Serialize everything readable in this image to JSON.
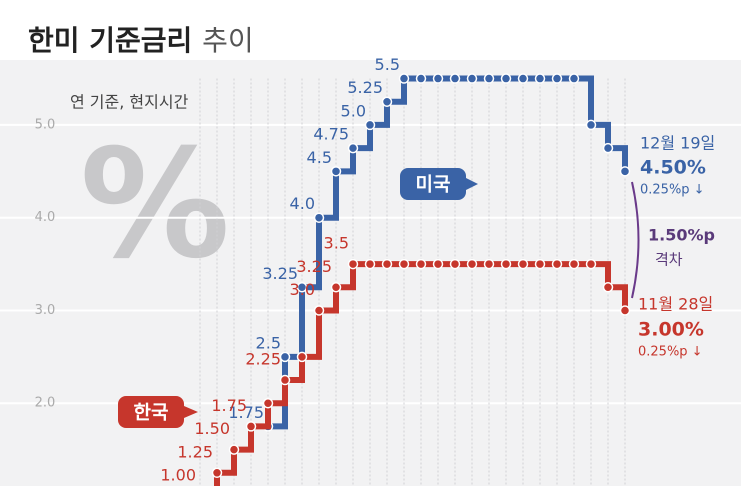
{
  "chart_data": {
    "type": "step",
    "title": [
      "한미 기준금리",
      "추이"
    ],
    "subtitle": "연 기준, 현지시간",
    "decoration": "%",
    "categories": [
      null,
      null,
      null,
      null,
      null,
      null,
      null,
      null,
      null,
      null,
      null,
      null,
      null,
      null,
      null,
      null,
      null,
      null,
      null,
      null,
      null,
      null,
      null,
      null,
      null,
      null
    ],
    "series": [
      {
        "name": "미국",
        "color": "#3a63a6",
        "values": [
          null,
          null,
          null,
          null,
          1.75,
          2.5,
          3.25,
          4.0,
          4.5,
          4.75,
          5.0,
          5.25,
          5.5,
          5.5,
          5.5,
          5.5,
          5.5,
          5.5,
          5.5,
          5.5,
          5.5,
          5.5,
          5.5,
          5.0,
          4.75,
          4.5
        ],
        "value_labels": [
          null,
          null,
          null,
          null,
          "1.75",
          "2.5",
          "3.25",
          "4.0",
          "4.5",
          "4.75",
          "5.0",
          "5.25",
          "5.5",
          null,
          null,
          null,
          null,
          null,
          null,
          null,
          null,
          null,
          null,
          null,
          null,
          null
        ]
      },
      {
        "name": "한국",
        "color": "#c6362c",
        "values": [
          1.0,
          1.25,
          1.5,
          1.75,
          2.0,
          2.25,
          2.5,
          3.0,
          3.25,
          3.5,
          3.5,
          3.5,
          3.5,
          3.5,
          3.5,
          3.5,
          3.5,
          3.5,
          3.5,
          3.5,
          3.5,
          3.5,
          3.5,
          3.5,
          3.25,
          3.0
        ],
        "value_labels": [
          "1.00",
          "1.25",
          "1.50",
          "1.75",
          null,
          "2.25",
          null,
          "3.0",
          "3.25",
          "3.5",
          null,
          null,
          null,
          null,
          null,
          null,
          null,
          null,
          null,
          null,
          null,
          null,
          null,
          null,
          null,
          null
        ]
      }
    ],
    "ylim": [
      1.0,
      5.7
    ],
    "yticks": [
      {
        "value": 2,
        "label": "2.0"
      },
      {
        "value": 3,
        "label": "3.0"
      },
      {
        "value": 4,
        "label": "4.0"
      },
      {
        "value": 5,
        "label": "5.0"
      }
    ],
    "annotations": {
      "us_date": "12월 19일",
      "us_rate": "4.50%",
      "us_change": "0.25%p ↓",
      "kr_date": "11월 28일",
      "kr_rate": "3.00%",
      "kr_change": "0.25%p ↓",
      "gap": "1.50%p",
      "gap_label": "격차"
    }
  }
}
